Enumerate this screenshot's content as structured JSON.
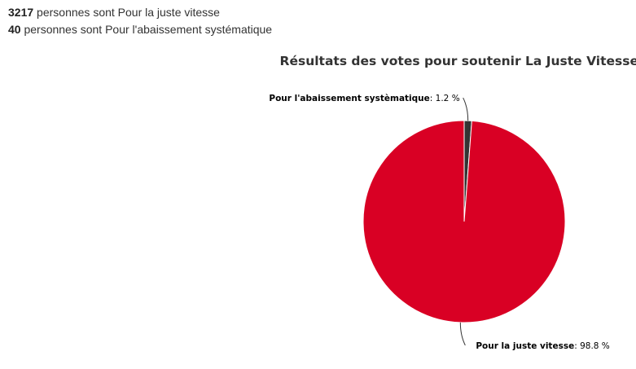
{
  "summary": [
    {
      "count": "3217",
      "text": "personnes sont Pour la juste vitesse"
    },
    {
      "count": "40",
      "text": "personnes sont Pour l'abaissement systématique"
    }
  ],
  "colors": {
    "juste_vitesse": "#d90024",
    "abaissement": "#333333"
  },
  "chart_data": {
    "type": "pie",
    "title": "Résultats des votes pour soutenir La Juste Vitesse !",
    "slices": [
      {
        "label": "Pour l'abaissement systèmatique",
        "value": 1.2,
        "value_label": "1.2 %",
        "color": "#333333"
      },
      {
        "label": "Pour la juste vitesse",
        "value": 98.8,
        "value_label": "98.8 %",
        "color": "#d90024"
      }
    ],
    "legend": "none"
  }
}
